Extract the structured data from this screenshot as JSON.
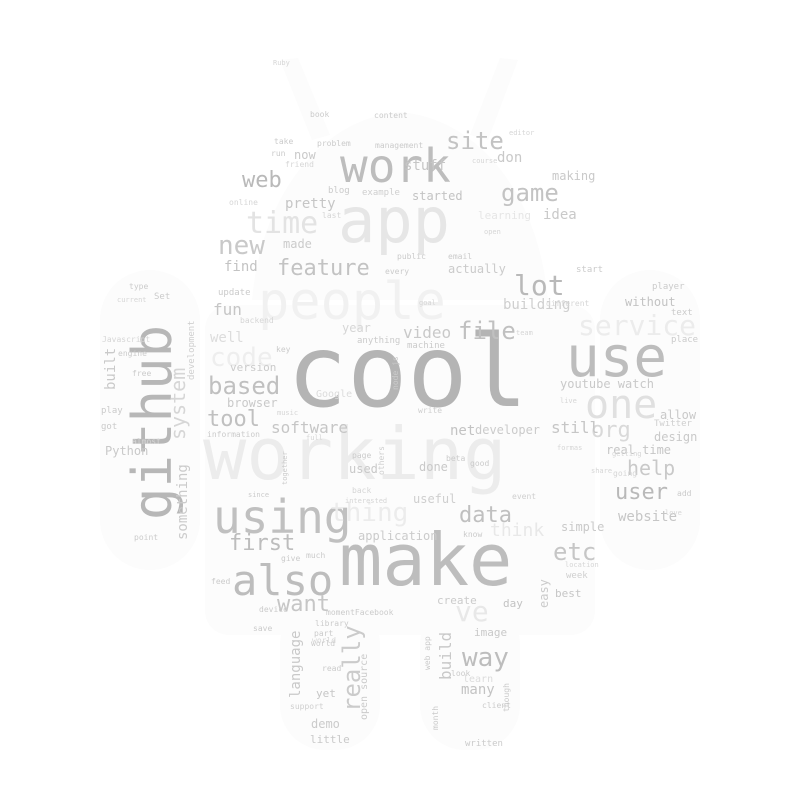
{
  "background": "#ffffff",
  "words": [
    {
      "text": "cool",
      "color": "#b4b4b4"
    },
    {
      "text": "working",
      "color": "#ececec"
    },
    {
      "text": "make",
      "color": "#bdbdbd"
    },
    {
      "text": "app",
      "color": "#e6e6e6"
    },
    {
      "text": "people",
      "color": "#f1f1f1"
    },
    {
      "text": "github",
      "color": "#b7b7b7"
    },
    {
      "text": "work",
      "color": "#bdbdbd"
    },
    {
      "text": "use",
      "color": "#bdbdbd"
    },
    {
      "text": "one",
      "color": "#e0e0e0"
    },
    {
      "text": "using",
      "color": "#c0c0c0"
    },
    {
      "text": "also",
      "color": "#bdbdbd"
    },
    {
      "text": "time",
      "color": "#e3e3e3"
    },
    {
      "text": "new",
      "color": "#c9c9c9"
    },
    {
      "text": "feature",
      "color": "#c3c3c3"
    },
    {
      "text": "lot",
      "color": "#b9b9b9"
    },
    {
      "text": "game",
      "color": "#c3c3c3"
    },
    {
      "text": "site",
      "color": "#c3c3c3"
    },
    {
      "text": "web",
      "color": "#b9b9b9"
    },
    {
      "text": "file",
      "color": "#c0c0c0"
    },
    {
      "text": "based",
      "color": "#c0c0c0"
    },
    {
      "text": "tool",
      "color": "#c0c0c0"
    },
    {
      "text": "data",
      "color": "#c0c0c0"
    },
    {
      "text": "first",
      "color": "#bdbdbd"
    },
    {
      "text": "etc",
      "color": "#c6c6c6"
    },
    {
      "text": "user",
      "color": "#b9b9b9"
    },
    {
      "text": "help",
      "color": "#c9c9c9"
    },
    {
      "text": "way",
      "color": "#bdbdbd"
    },
    {
      "text": "want",
      "color": "#c6c6c6"
    },
    {
      "text": "really",
      "color": "#cbcbcb"
    },
    {
      "text": "system",
      "color": "#d6d6d6"
    },
    {
      "text": "service",
      "color": "#ececec"
    },
    {
      "text": "code",
      "color": "#eeeeee"
    },
    {
      "text": "thing",
      "color": "#ececec"
    },
    {
      "text": "think",
      "color": "#e8e8e8"
    },
    {
      "text": "ve",
      "color": "#e8e8e8"
    },
    {
      "text": "org",
      "color": "#d9d9d9"
    },
    {
      "text": "website",
      "color": "#c6c6c6"
    },
    {
      "text": "still",
      "color": "#c6c6c6"
    },
    {
      "text": "software",
      "color": "#c6c6c6"
    },
    {
      "text": "video",
      "color": "#c9c9c9"
    },
    {
      "text": "youtube watch",
      "color": "#c9c9c9"
    },
    {
      "text": "building",
      "color": "#cfcfcf"
    },
    {
      "text": "idea",
      "color": "#c9c9c9"
    },
    {
      "text": "making",
      "color": "#c9c9c9"
    },
    {
      "text": "stuff",
      "color": "#c6c6c6"
    },
    {
      "text": "don",
      "color": "#c9c9c9"
    },
    {
      "text": "pretty",
      "color": "#c6c6c6"
    },
    {
      "text": "find",
      "color": "#c3c3c3"
    },
    {
      "text": "fun",
      "color": "#c6c6c6"
    },
    {
      "text": "made",
      "color": "#cbcbcb"
    },
    {
      "text": "actually",
      "color": "#cbcbcb"
    },
    {
      "text": "language",
      "color": "#c9c9c9"
    },
    {
      "text": "build",
      "color": "#c9c9c9"
    },
    {
      "text": "many",
      "color": "#c3c3c3"
    },
    {
      "text": "net",
      "color": "#c3c3c3"
    },
    {
      "text": "developer",
      "color": "#cbcbcb"
    },
    {
      "text": "design",
      "color": "#c9c9c9"
    },
    {
      "text": "real time",
      "color": "#c6c6c6"
    },
    {
      "text": "allow",
      "color": "#c9c9c9"
    },
    {
      "text": "without",
      "color": "#c3c3c3"
    },
    {
      "text": "application",
      "color": "#cbcbcb"
    },
    {
      "text": "something",
      "color": "#cbcbcb"
    },
    {
      "text": "browser",
      "color": "#c9c9c9"
    },
    {
      "text": "version",
      "color": "#cbcbcb"
    },
    {
      "text": "Python",
      "color": "#c9c9c9"
    },
    {
      "text": "built",
      "color": "#c9c9c9"
    },
    {
      "text": "started",
      "color": "#c3c3c3"
    },
    {
      "text": "now",
      "color": "#c9c9c9"
    },
    {
      "text": "used",
      "color": "#c9c9c9"
    },
    {
      "text": "done",
      "color": "#c9c9c9"
    },
    {
      "text": "useful",
      "color": "#cfcfcf"
    },
    {
      "text": "simple",
      "color": "#c9c9c9"
    },
    {
      "text": "best",
      "color": "#c6c6c6"
    },
    {
      "text": "easy",
      "color": "#cbcbcb"
    },
    {
      "text": "day",
      "color": "#c3c3c3"
    },
    {
      "text": "create",
      "color": "#cbcbcb"
    },
    {
      "text": "image",
      "color": "#c9c9c9"
    },
    {
      "text": "demo",
      "color": "#cbcbcb"
    },
    {
      "text": "yet",
      "color": "#c6c6c6"
    },
    {
      "text": "little",
      "color": "#c9c9c9"
    },
    {
      "text": "open source",
      "color": "#cbcbcb"
    },
    {
      "text": "update",
      "color": "#cbcbcb"
    },
    {
      "text": "blog",
      "color": "#cbcbcb"
    },
    {
      "text": "example",
      "color": "#cfcfcf"
    },
    {
      "text": "web app",
      "color": "#cbcbcb"
    },
    {
      "text": "year",
      "color": "#d6d6d6"
    },
    {
      "text": "well",
      "color": "#dcdcdc"
    },
    {
      "text": "learning",
      "color": "#e6e6e6"
    },
    {
      "text": "engine",
      "color": "#cbcbcb"
    },
    {
      "text": "development",
      "color": "#cfcfcf"
    },
    {
      "text": "Javascript",
      "color": "#d6d6d6"
    },
    {
      "text": "Google",
      "color": "#dcdcdc"
    },
    {
      "text": "node js",
      "color": "#cbcbcb"
    },
    {
      "text": "machine",
      "color": "#cbcbcb"
    },
    {
      "text": "anything",
      "color": "#cbcbcb"
    },
    {
      "text": "start",
      "color": "#cbcbcb"
    },
    {
      "text": "player",
      "color": "#cbcbcb"
    },
    {
      "text": "text",
      "color": "#cbcbcb"
    },
    {
      "text": "place",
      "color": "#cbcbcb"
    },
    {
      "text": "Twitter",
      "color": "#cfcfcf"
    },
    {
      "text": "add",
      "color": "#cbcbcb"
    },
    {
      "text": "going",
      "color": "#d6d6d6"
    },
    {
      "text": "play",
      "color": "#cbcbcb"
    },
    {
      "text": "got",
      "color": "#cbcbcb"
    },
    {
      "text": "point",
      "color": "#cbcbcb"
    },
    {
      "text": "information",
      "color": "#cbcbcb"
    },
    {
      "text": "key",
      "color": "#cbcbcb"
    },
    {
      "text": "backend",
      "color": "#d6d6d6"
    },
    {
      "text": "problem",
      "color": "#cbcbcb"
    },
    {
      "text": "management",
      "color": "#cbcbcb"
    },
    {
      "text": "content",
      "color": "#cbcbcb"
    },
    {
      "text": "book",
      "color": "#cbcbcb"
    },
    {
      "text": "run",
      "color": "#cbcbcb"
    },
    {
      "text": "take",
      "color": "#cbcbcb"
    },
    {
      "text": "friend",
      "color": "#d6d6d6"
    },
    {
      "text": "public",
      "color": "#cbcbcb"
    },
    {
      "text": "email",
      "color": "#cbcbcb"
    },
    {
      "text": "every",
      "color": "#cbcbcb"
    },
    {
      "text": "last",
      "color": "#d6d6d6"
    },
    {
      "text": "different",
      "color": "#d6d6d6"
    },
    {
      "text": "write",
      "color": "#cfcfcf"
    },
    {
      "text": "others",
      "color": "#cfcfcf"
    },
    {
      "text": "beta",
      "color": "#cbcbcb"
    },
    {
      "text": "good",
      "color": "#cbcbcb"
    },
    {
      "text": "know",
      "color": "#cbcbcb"
    },
    {
      "text": "event",
      "color": "#cfcfcf"
    },
    {
      "text": "week",
      "color": "#cfcfcf"
    },
    {
      "text": "momentFacebook",
      "color": "#cbcbcb"
    },
    {
      "text": "library",
      "color": "#cbcbcb"
    },
    {
      "text": "part",
      "color": "#cbcbcb"
    },
    {
      "text": "world",
      "color": "#cbcbcb"
    },
    {
      "text": "device",
      "color": "#cbcbcb"
    },
    {
      "text": "save",
      "color": "#cbcbcb"
    },
    {
      "text": "support",
      "color": "#cfcfcf"
    },
    {
      "text": "read",
      "color": "#cbcbcb"
    },
    {
      "text": "look",
      "color": "#cbcbcb"
    },
    {
      "text": "month",
      "color": "#cbcbcb"
    },
    {
      "text": "client",
      "color": "#cbcbcb"
    },
    {
      "text": "though",
      "color": "#cbcbcb"
    },
    {
      "text": "written",
      "color": "#cbcbcb"
    },
    {
      "text": "learn",
      "color": "#dcdcdc"
    },
    {
      "text": "together",
      "color": "#cbcbcb"
    },
    {
      "text": "page",
      "color": "#cbcbcb"
    },
    {
      "text": "back",
      "color": "#d6d6d6"
    },
    {
      "text": "interested",
      "color": "#d6d6d6"
    },
    {
      "text": "give",
      "color": "#cbcbcb"
    },
    {
      "text": "feed",
      "color": "#cbcbcb"
    },
    {
      "text": "Ruby",
      "color": "#d6d6d6"
    },
    {
      "text": "type",
      "color": "#cbcbcb"
    },
    {
      "text": "Set",
      "color": "#cbcbcb"
    },
    {
      "text": "free",
      "color": "#cbcbcb"
    },
    {
      "text": "almost",
      "color": "#d6d6d6"
    },
    {
      "text": "since",
      "color": "#cbcbcb"
    },
    {
      "text": "much",
      "color": "#cbcbcb"
    },
    {
      "text": "course",
      "color": "#d6d6d6"
    },
    {
      "text": "editor",
      "color": "#d6d6d6"
    },
    {
      "text": "open",
      "color": "#d6d6d6"
    },
    {
      "text": "goal",
      "color": "#d6d6d6"
    },
    {
      "text": "live",
      "color": "#d6d6d6"
    },
    {
      "text": "love",
      "color": "#d6d6d6"
    },
    {
      "text": "location",
      "color": "#d6d6d6"
    },
    {
      "text": "formas",
      "color": "#d6d6d6"
    },
    {
      "text": "current",
      "color": "#d6d6d6"
    },
    {
      "text": "music",
      "color": "#d6d6d6"
    },
    {
      "text": "full",
      "color": "#d6d6d6"
    },
    {
      "text": "team",
      "color": "#d6d6d6"
    },
    {
      "text": "share",
      "color": "#d6d6d6"
    },
    {
      "text": "getting",
      "color": "#d6d6d6"
    },
    {
      "text": "online",
      "color": "#d6d6d6"
    },
    {
      "text": "world",
      "color": "#d6d6d6"
    }
  ]
}
